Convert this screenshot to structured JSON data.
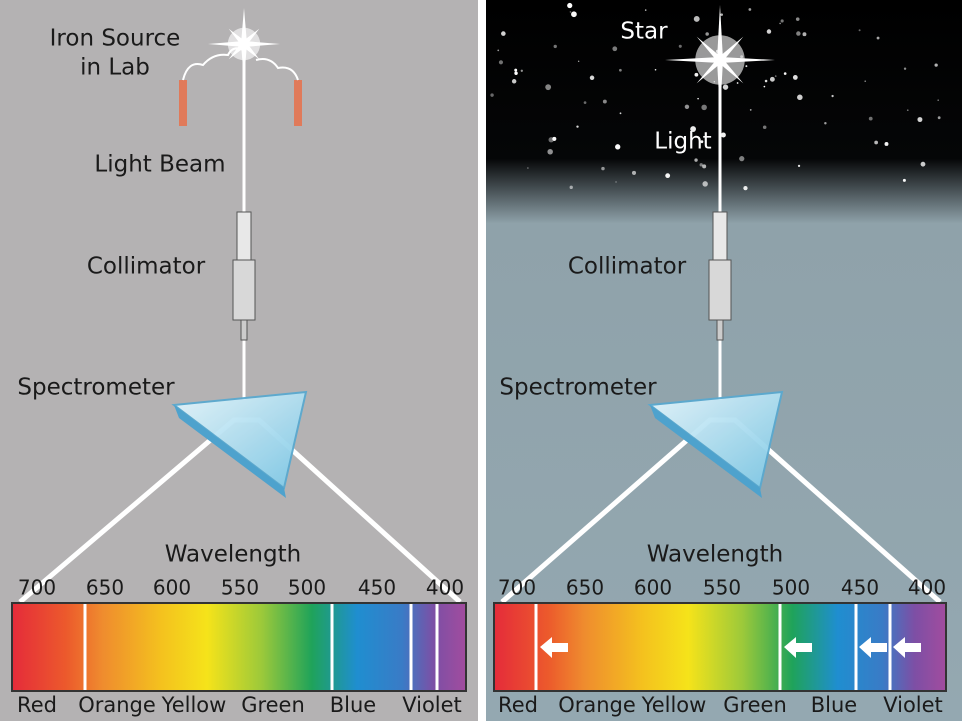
{
  "left": {
    "source": [
      "Iron Source",
      "in Lab"
    ],
    "beam": "Light Beam",
    "collimator": "Collimator",
    "spectrometer": "Spectrometer",
    "scale_title": "Wavelength",
    "ticks": [
      700,
      650,
      600,
      550,
      500,
      450,
      400
    ],
    "colors": [
      "Red",
      "Orange",
      "Yellow",
      "Green",
      "Blue",
      "Violet"
    ]
  },
  "right": {
    "star": "Star",
    "light": "Light",
    "collimator": "Collimator",
    "spectrometer": "Spectrometer",
    "scale_title": "Wavelength",
    "ticks": [
      700,
      650,
      600,
      550,
      500,
      450,
      400
    ],
    "colors": [
      "Red",
      "Orange",
      "Yellow",
      "Green",
      "Blue",
      "Violet"
    ]
  }
}
